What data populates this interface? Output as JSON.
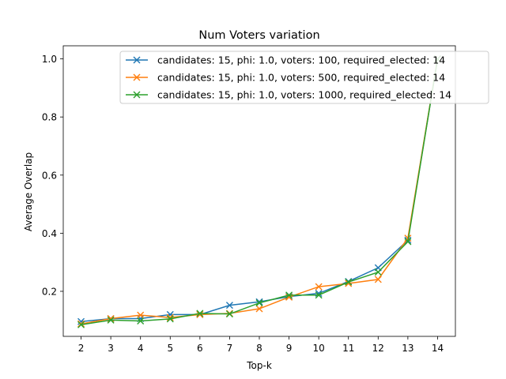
{
  "chart_data": {
    "type": "line",
    "title": "Num Voters variation",
    "xlabel": "Top-k",
    "ylabel": "Average Overlap",
    "x": [
      2,
      3,
      4,
      5,
      6,
      7,
      8,
      9,
      10,
      11,
      12,
      13,
      14
    ],
    "x_ticks": [
      2,
      3,
      4,
      5,
      6,
      7,
      8,
      9,
      10,
      11,
      12,
      13,
      14
    ],
    "xlim": [
      1.4,
      14.6
    ],
    "y_ticks": [
      0.2,
      0.4,
      0.6,
      0.8,
      1.0
    ],
    "y_tick_labels": [
      "0.2",
      "0.4",
      "0.6",
      "0.8",
      "1.0"
    ],
    "ylim": [
      0.045,
      1.045
    ],
    "grid": false,
    "legend_position": "top-right",
    "marker": "x",
    "series": [
      {
        "name": "candidates: 15, phi: 1.0, voters: 100, required_elected: 14",
        "color": "#1f77b4",
        "values": [
          0.096,
          0.106,
          0.106,
          0.12,
          0.12,
          0.152,
          0.164,
          0.182,
          0.193,
          0.234,
          0.281,
          0.376,
          1.0
        ]
      },
      {
        "name": "candidates: 15, phi: 1.0, voters: 500, required_elected: 14",
        "color": "#ff7f0e",
        "values": [
          0.088,
          0.106,
          0.118,
          0.11,
          0.12,
          0.124,
          0.14,
          0.18,
          0.216,
          0.227,
          0.241,
          0.383,
          1.0
        ]
      },
      {
        "name": "candidates: 15, phi: 1.0, voters: 1000, required_elected: 14",
        "color": "#2ca02c",
        "values": [
          0.085,
          0.101,
          0.098,
          0.105,
          0.124,
          0.122,
          0.16,
          0.187,
          0.187,
          0.232,
          0.266,
          0.371,
          1.0
        ]
      }
    ]
  }
}
